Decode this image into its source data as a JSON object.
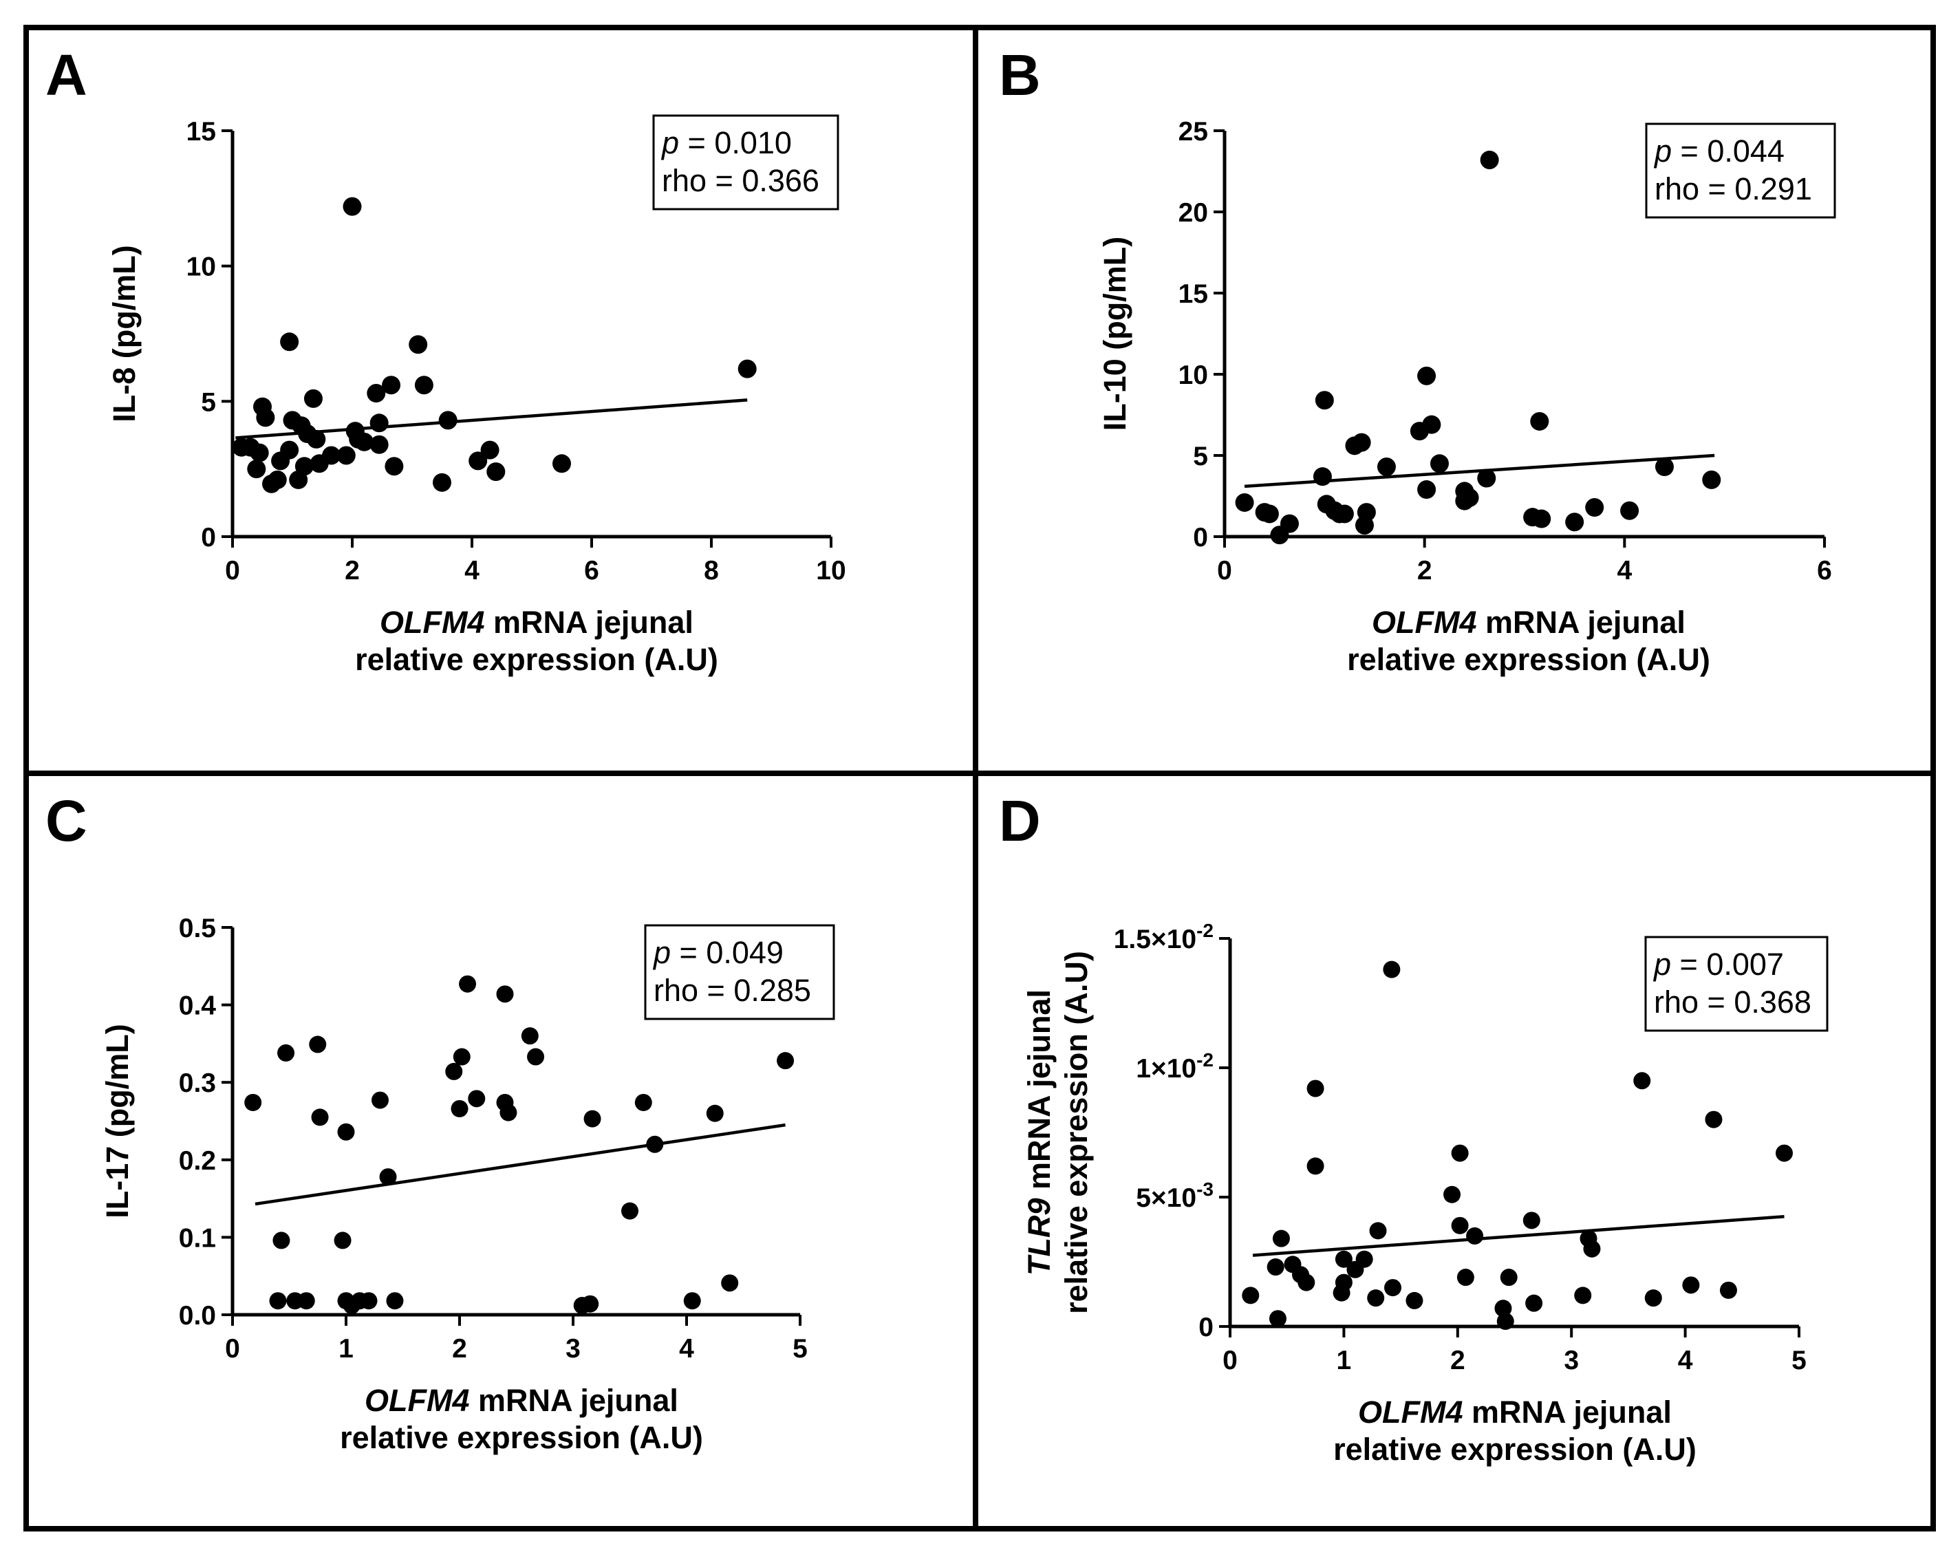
{
  "figure": {
    "x_axis_title_italic": "OLFM4",
    "x_axis_title_rest": " mRNA jejunal",
    "x_axis_title_line2": "relative expression (A.U)"
  },
  "chart_data": [
    {
      "panel": "A",
      "type": "scatter",
      "ylabel": "IL-8 (pg/mL)",
      "stats": {
        "p_symbol": "p",
        "p_text": " = 0.010",
        "rho_text": "rho = 0.366"
      },
      "xlim": [
        0,
        10
      ],
      "ylim": [
        0,
        15
      ],
      "x_ticks": [
        0,
        2,
        4,
        6,
        8,
        10
      ],
      "x_tick_labels": [
        "0",
        "2",
        "4",
        "6",
        "8",
        "10"
      ],
      "y_ticks": [
        0,
        5,
        10,
        15
      ],
      "y_tick_labels": [
        "0",
        "5",
        "10",
        "15"
      ],
      "fit_line": {
        "x": [
          0.05,
          8.6
        ],
        "y": [
          3.65,
          5.05
        ]
      },
      "points": [
        [
          0.15,
          3.3
        ],
        [
          0.3,
          3.3
        ],
        [
          0.4,
          2.5
        ],
        [
          0.45,
          3.1
        ],
        [
          0.5,
          4.8
        ],
        [
          0.55,
          4.4
        ],
        [
          0.65,
          1.95
        ],
        [
          0.75,
          2.1
        ],
        [
          0.8,
          2.8
        ],
        [
          0.95,
          7.2
        ],
        [
          0.95,
          3.2
        ],
        [
          1.0,
          4.3
        ],
        [
          1.1,
          2.1
        ],
        [
          1.15,
          4.1
        ],
        [
          1.2,
          2.6
        ],
        [
          1.25,
          3.8
        ],
        [
          1.35,
          5.1
        ],
        [
          1.4,
          3.6
        ],
        [
          1.45,
          2.7
        ],
        [
          1.65,
          3.0
        ],
        [
          1.9,
          3.0
        ],
        [
          2.0,
          12.2
        ],
        [
          2.05,
          3.9
        ],
        [
          2.1,
          3.6
        ],
        [
          2.2,
          3.5
        ],
        [
          2.4,
          5.3
        ],
        [
          2.45,
          4.2
        ],
        [
          2.45,
          3.4
        ],
        [
          2.65,
          5.6
        ],
        [
          2.7,
          2.6
        ],
        [
          3.1,
          7.1
        ],
        [
          3.2,
          5.6
        ],
        [
          3.5,
          2.0
        ],
        [
          3.6,
          4.3
        ],
        [
          4.1,
          2.8
        ],
        [
          4.3,
          3.2
        ],
        [
          4.4,
          2.4
        ],
        [
          5.5,
          2.7
        ],
        [
          8.6,
          6.2
        ]
      ]
    },
    {
      "panel": "B",
      "type": "scatter",
      "ylabel": "IL-10 (pg/mL)",
      "stats": {
        "p_symbol": "p",
        "p_text": " = 0.044",
        "rho_text": "rho = 0.291"
      },
      "xlim": [
        0,
        6
      ],
      "ylim": [
        0,
        25
      ],
      "x_ticks": [
        0,
        2,
        4,
        6
      ],
      "x_tick_labels": [
        "0",
        "2",
        "4",
        "6"
      ],
      "y_ticks": [
        0,
        5,
        10,
        15,
        20,
        25
      ],
      "y_tick_labels": [
        "0",
        "5",
        "10",
        "15",
        "20",
        "25"
      ],
      "fit_line": {
        "x": [
          0.2,
          4.9
        ],
        "y": [
          3.1,
          5.0
        ]
      },
      "points": [
        [
          0.2,
          2.1
        ],
        [
          0.4,
          1.5
        ],
        [
          0.45,
          1.4
        ],
        [
          0.55,
          0.1
        ],
        [
          0.65,
          0.8
        ],
        [
          0.98,
          3.7
        ],
        [
          1.0,
          8.4
        ],
        [
          1.02,
          2.0
        ],
        [
          1.1,
          1.6
        ],
        [
          1.15,
          1.4
        ],
        [
          1.2,
          1.4
        ],
        [
          1.3,
          5.6
        ],
        [
          1.37,
          5.8
        ],
        [
          1.4,
          0.7
        ],
        [
          1.42,
          1.5
        ],
        [
          1.62,
          4.3
        ],
        [
          1.95,
          6.5
        ],
        [
          2.02,
          9.9
        ],
        [
          2.02,
          2.9
        ],
        [
          2.07,
          6.9
        ],
        [
          2.15,
          4.5
        ],
        [
          2.4,
          2.8
        ],
        [
          2.4,
          2.2
        ],
        [
          2.45,
          2.4
        ],
        [
          2.62,
          3.6
        ],
        [
          2.65,
          23.2
        ],
        [
          3.08,
          1.2
        ],
        [
          3.15,
          7.1
        ],
        [
          3.17,
          1.1
        ],
        [
          3.5,
          0.9
        ],
        [
          3.7,
          1.8
        ],
        [
          4.05,
          1.6
        ],
        [
          4.4,
          4.3
        ],
        [
          4.87,
          3.5
        ]
      ]
    },
    {
      "panel": "C",
      "type": "scatter",
      "ylabel": "IL-17 (pg/mL)",
      "stats": {
        "p_symbol": "p",
        "p_text": " = 0.049",
        "rho_text": "rho = 0.285"
      },
      "xlim": [
        0,
        5
      ],
      "ylim": [
        0,
        0.5
      ],
      "x_ticks": [
        0,
        1,
        2,
        3,
        4,
        5
      ],
      "x_tick_labels": [
        "0",
        "1",
        "2",
        "3",
        "4",
        "5"
      ],
      "y_ticks": [
        0,
        0.1,
        0.2,
        0.3,
        0.4,
        0.5
      ],
      "y_tick_labels": [
        "0.0",
        "0.1",
        "0.2",
        "0.3",
        "0.4",
        "0.5"
      ],
      "fit_line": {
        "x": [
          0.2,
          4.87
        ],
        "y": [
          0.143,
          0.245
        ]
      },
      "points": [
        [
          0.18,
          0.274
        ],
        [
          0.4,
          0.018
        ],
        [
          0.43,
          0.096
        ],
        [
          0.47,
          0.338
        ],
        [
          0.55,
          0.018
        ],
        [
          0.65,
          0.018
        ],
        [
          0.75,
          0.349
        ],
        [
          0.77,
          0.255
        ],
        [
          0.97,
          0.096
        ],
        [
          1.0,
          0.236
        ],
        [
          1.0,
          0.018
        ],
        [
          1.05,
          0.012
        ],
        [
          1.12,
          0.018
        ],
        [
          1.2,
          0.018
        ],
        [
          1.3,
          0.277
        ],
        [
          1.37,
          0.178
        ],
        [
          1.43,
          0.018
        ],
        [
          1.95,
          0.314
        ],
        [
          2.0,
          0.266
        ],
        [
          2.02,
          0.333
        ],
        [
          2.07,
          0.427
        ],
        [
          2.15,
          0.279
        ],
        [
          2.4,
          0.414
        ],
        [
          2.4,
          0.274
        ],
        [
          2.43,
          0.261
        ],
        [
          2.62,
          0.36
        ],
        [
          2.67,
          0.333
        ],
        [
          3.08,
          0.012
        ],
        [
          3.15,
          0.014
        ],
        [
          3.17,
          0.253
        ],
        [
          3.5,
          0.134
        ],
        [
          3.62,
          0.274
        ],
        [
          3.72,
          0.22
        ],
        [
          4.05,
          0.018
        ],
        [
          4.25,
          0.26
        ],
        [
          4.38,
          0.041
        ],
        [
          4.87,
          0.328
        ]
      ]
    },
    {
      "panel": "D",
      "type": "scatter",
      "ylabel_italic": "TLR9",
      "ylabel_rest": " mRNA jejunal",
      "ylabel_line2": "relative expression (A.U)",
      "stats": {
        "p_symbol": "p",
        "p_text": " = 0.007",
        "rho_text": "rho = 0.368"
      },
      "xlim": [
        0,
        5
      ],
      "ylim": [
        0,
        0.015
      ],
      "x_ticks": [
        0,
        1,
        2,
        3,
        4,
        5
      ],
      "x_tick_labels": [
        "0",
        "1",
        "2",
        "3",
        "4",
        "5"
      ],
      "y_ticks": [
        0,
        0.005,
        0.01,
        0.015
      ],
      "y_tick_labels": [
        {
          "mantissa": "0",
          "exponent": ""
        },
        {
          "mantissa": "5×10",
          "exponent": "-3"
        },
        {
          "mantissa": "1×10",
          "exponent": "-2"
        },
        {
          "mantissa": "1.5×10",
          "exponent": "-2"
        }
      ],
      "fit_line": {
        "x": [
          0.2,
          4.87
        ],
        "y": [
          0.00275,
          0.00425
        ]
      },
      "points": [
        [
          0.18,
          0.0012
        ],
        [
          0.4,
          0.0023
        ],
        [
          0.42,
          0.0003
        ],
        [
          0.45,
          0.0034
        ],
        [
          0.55,
          0.0024
        ],
        [
          0.62,
          0.002
        ],
        [
          0.67,
          0.0017
        ],
        [
          0.75,
          0.0092
        ],
        [
          0.75,
          0.0062
        ],
        [
          0.98,
          0.0013
        ],
        [
          1.0,
          0.0026
        ],
        [
          1.0,
          0.0017
        ],
        [
          1.1,
          0.0022
        ],
        [
          1.18,
          0.0026
        ],
        [
          1.28,
          0.0011
        ],
        [
          1.3,
          0.0037
        ],
        [
          1.42,
          0.0138
        ],
        [
          1.43,
          0.0015
        ],
        [
          1.62,
          0.001
        ],
        [
          1.95,
          0.0051
        ],
        [
          2.02,
          0.0067
        ],
        [
          2.02,
          0.0039
        ],
        [
          2.07,
          0.0019
        ],
        [
          2.15,
          0.0035
        ],
        [
          2.4,
          0.0007
        ],
        [
          2.42,
          0.0002
        ],
        [
          2.45,
          0.0019
        ],
        [
          2.65,
          0.0041
        ],
        [
          2.67,
          0.0009
        ],
        [
          3.1,
          0.0012
        ],
        [
          3.15,
          0.0034
        ],
        [
          3.18,
          0.003
        ],
        [
          3.62,
          0.0095
        ],
        [
          3.72,
          0.0011
        ],
        [
          4.05,
          0.0016
        ],
        [
          4.25,
          0.008
        ],
        [
          4.38,
          0.0014
        ],
        [
          4.87,
          0.0067
        ]
      ]
    }
  ]
}
